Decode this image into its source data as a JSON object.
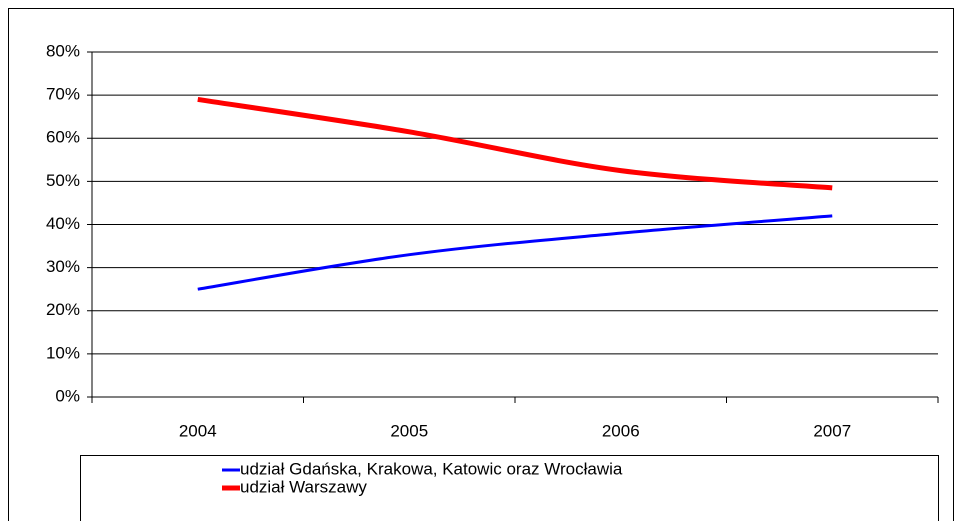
{
  "chart_data": {
    "type": "line",
    "categories": [
      "2004",
      "2005",
      "2006",
      "2007"
    ],
    "series": [
      {
        "name": "udział Gdańska, Krakowa, Katowic oraz Wrocławia",
        "color": "#0000ff",
        "values": [
          25,
          33,
          38,
          42
        ]
      },
      {
        "name": "udział Warszawy",
        "color": "#ff0000",
        "values": [
          69,
          61.5,
          52.5,
          48.5
        ]
      }
    ],
    "ylim": [
      0,
      80
    ],
    "yticks": [
      {
        "value": 0,
        "label": "0%"
      },
      {
        "value": 10,
        "label": "10%"
      },
      {
        "value": 20,
        "label": "20%"
      },
      {
        "value": 30,
        "label": "30%"
      },
      {
        "value": 40,
        "label": "40%"
      },
      {
        "value": 50,
        "label": "50%"
      },
      {
        "value": 60,
        "label": "60%"
      },
      {
        "value": 70,
        "label": "70%"
      },
      {
        "value": 80,
        "label": "80%"
      }
    ],
    "grid": true,
    "legend": "bottom"
  }
}
